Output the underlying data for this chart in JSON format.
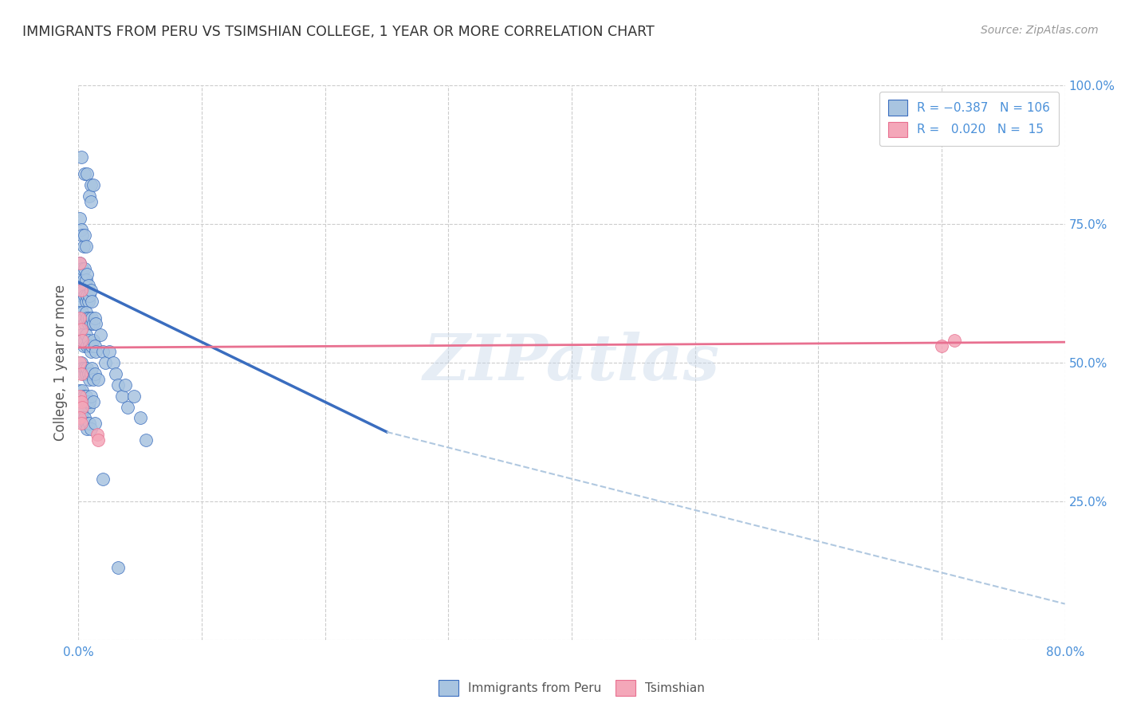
{
  "title": "IMMIGRANTS FROM PERU VS TSIMSHIAN COLLEGE, 1 YEAR OR MORE CORRELATION CHART",
  "source": "Source: ZipAtlas.com",
  "ylabel": "College, 1 year or more",
  "xlim": [
    0,
    0.8
  ],
  "ylim": [
    0,
    1.0
  ],
  "color_blue": "#a8c4e0",
  "color_pink": "#f4a7b9",
  "trendline1_color": "#3a6dbf",
  "trendline2_color": "#e87090",
  "trendline_ext_color": "#b0c8e0",
  "grid_color": "#cccccc",
  "axis_color": "#4a90d9",
  "watermark": "ZIPatlas",
  "blue_dots": [
    [
      0.002,
      0.87
    ],
    [
      0.005,
      0.84
    ],
    [
      0.007,
      0.84
    ],
    [
      0.01,
      0.82
    ],
    [
      0.009,
      0.8
    ],
    [
      0.012,
      0.82
    ],
    [
      0.01,
      0.79
    ],
    [
      0.001,
      0.76
    ],
    [
      0.002,
      0.74
    ],
    [
      0.003,
      0.73
    ],
    [
      0.004,
      0.71
    ],
    [
      0.005,
      0.73
    ],
    [
      0.006,
      0.71
    ],
    [
      0.001,
      0.68
    ],
    [
      0.002,
      0.66
    ],
    [
      0.003,
      0.67
    ],
    [
      0.004,
      0.65
    ],
    [
      0.005,
      0.67
    ],
    [
      0.006,
      0.65
    ],
    [
      0.007,
      0.66
    ],
    [
      0.008,
      0.64
    ],
    [
      0.001,
      0.63
    ],
    [
      0.002,
      0.62
    ],
    [
      0.003,
      0.61
    ],
    [
      0.004,
      0.63
    ],
    [
      0.005,
      0.62
    ],
    [
      0.006,
      0.61
    ],
    [
      0.007,
      0.62
    ],
    [
      0.008,
      0.61
    ],
    [
      0.009,
      0.62
    ],
    [
      0.01,
      0.63
    ],
    [
      0.011,
      0.61
    ],
    [
      0.001,
      0.59
    ],
    [
      0.002,
      0.58
    ],
    [
      0.003,
      0.59
    ],
    [
      0.004,
      0.58
    ],
    [
      0.005,
      0.57
    ],
    [
      0.006,
      0.59
    ],
    [
      0.007,
      0.58
    ],
    [
      0.008,
      0.57
    ],
    [
      0.009,
      0.58
    ],
    [
      0.01,
      0.57
    ],
    [
      0.011,
      0.58
    ],
    [
      0.012,
      0.57
    ],
    [
      0.013,
      0.58
    ],
    [
      0.014,
      0.57
    ],
    [
      0.001,
      0.54
    ],
    [
      0.002,
      0.55
    ],
    [
      0.003,
      0.54
    ],
    [
      0.004,
      0.53
    ],
    [
      0.005,
      0.54
    ],
    [
      0.006,
      0.55
    ],
    [
      0.007,
      0.53
    ],
    [
      0.008,
      0.54
    ],
    [
      0.009,
      0.53
    ],
    [
      0.01,
      0.52
    ],
    [
      0.011,
      0.53
    ],
    [
      0.012,
      0.54
    ],
    [
      0.013,
      0.53
    ],
    [
      0.014,
      0.52
    ],
    [
      0.001,
      0.49
    ],
    [
      0.002,
      0.5
    ],
    [
      0.003,
      0.49
    ],
    [
      0.004,
      0.48
    ],
    [
      0.005,
      0.49
    ],
    [
      0.006,
      0.48
    ],
    [
      0.007,
      0.49
    ],
    [
      0.008,
      0.48
    ],
    [
      0.009,
      0.47
    ],
    [
      0.01,
      0.48
    ],
    [
      0.011,
      0.49
    ],
    [
      0.012,
      0.47
    ],
    [
      0.013,
      0.48
    ],
    [
      0.016,
      0.47
    ],
    [
      0.001,
      0.45
    ],
    [
      0.002,
      0.44
    ],
    [
      0.003,
      0.45
    ],
    [
      0.004,
      0.44
    ],
    [
      0.005,
      0.43
    ],
    [
      0.006,
      0.44
    ],
    [
      0.007,
      0.43
    ],
    [
      0.008,
      0.42
    ],
    [
      0.009,
      0.43
    ],
    [
      0.01,
      0.44
    ],
    [
      0.012,
      0.43
    ],
    [
      0.001,
      0.4
    ],
    [
      0.002,
      0.41
    ],
    [
      0.003,
      0.4
    ],
    [
      0.004,
      0.39
    ],
    [
      0.005,
      0.4
    ],
    [
      0.006,
      0.39
    ],
    [
      0.007,
      0.38
    ],
    [
      0.009,
      0.39
    ],
    [
      0.01,
      0.38
    ],
    [
      0.013,
      0.39
    ],
    [
      0.018,
      0.55
    ],
    [
      0.02,
      0.52
    ],
    [
      0.022,
      0.5
    ],
    [
      0.025,
      0.52
    ],
    [
      0.028,
      0.5
    ],
    [
      0.03,
      0.48
    ],
    [
      0.032,
      0.46
    ],
    [
      0.035,
      0.44
    ],
    [
      0.038,
      0.46
    ],
    [
      0.04,
      0.42
    ],
    [
      0.045,
      0.44
    ],
    [
      0.05,
      0.4
    ],
    [
      0.055,
      0.36
    ],
    [
      0.02,
      0.29
    ],
    [
      0.032,
      0.13
    ]
  ],
  "pink_dots": [
    [
      0.001,
      0.68
    ],
    [
      0.002,
      0.63
    ],
    [
      0.001,
      0.58
    ],
    [
      0.002,
      0.56
    ],
    [
      0.003,
      0.54
    ],
    [
      0.001,
      0.5
    ],
    [
      0.002,
      0.48
    ],
    [
      0.001,
      0.44
    ],
    [
      0.002,
      0.43
    ],
    [
      0.003,
      0.42
    ],
    [
      0.001,
      0.4
    ],
    [
      0.002,
      0.39
    ],
    [
      0.015,
      0.37
    ],
    [
      0.016,
      0.36
    ],
    [
      0.7,
      0.53
    ],
    [
      0.71,
      0.54
    ]
  ],
  "trendline1_x0": 0.0,
  "trendline1_y0": 0.645,
  "trendline1_x1": 0.25,
  "trendline1_y1": 0.375,
  "trendline1ext_x1": 0.8,
  "trendline1ext_y1": 0.065,
  "trendline2_x0": 0.0,
  "trendline2_y0": 0.527,
  "trendline2_x1": 0.8,
  "trendline2_y1": 0.537
}
